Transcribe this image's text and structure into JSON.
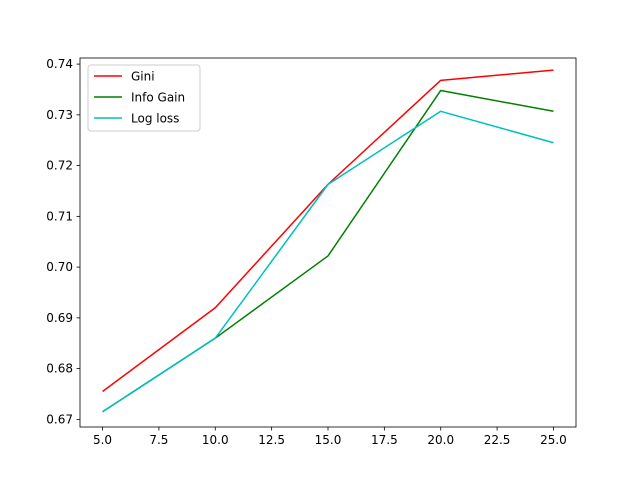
{
  "chart_data": {
    "type": "line",
    "title": "",
    "xlabel": "",
    "ylabel": "",
    "xlim": [
      4.0,
      26.0
    ],
    "ylim": [
      0.6685,
      0.7412
    ],
    "xticks": [
      5.0,
      7.5,
      10.0,
      12.5,
      15.0,
      17.5,
      20.0,
      22.5,
      25.0
    ],
    "xtick_labels": [
      "5.0",
      "7.5",
      "10.0",
      "12.5",
      "15.0",
      "17.5",
      "20.0",
      "22.5",
      "25.0"
    ],
    "yticks": [
      0.67,
      0.68,
      0.69,
      0.7,
      0.71,
      0.72,
      0.73,
      0.74
    ],
    "ytick_labels": [
      "0.67",
      "0.68",
      "0.69",
      "0.70",
      "0.71",
      "0.72",
      "0.73",
      "0.74"
    ],
    "grid": false,
    "legend_position": "upper-left",
    "x": [
      5,
      10,
      15,
      20,
      25
    ],
    "series": [
      {
        "name": "Gini",
        "color": "#ff0000",
        "values": [
          0.6755,
          0.692,
          0.7163,
          0.7368,
          0.7388
        ]
      },
      {
        "name": "Info Gain",
        "color": "#008000",
        "values": [
          0.6715,
          0.686,
          0.7022,
          0.7348,
          0.7307
        ]
      },
      {
        "name": "Log loss",
        "color": "#00bfbf",
        "values": [
          0.6715,
          0.686,
          0.7163,
          0.7307,
          0.7245
        ]
      }
    ]
  }
}
